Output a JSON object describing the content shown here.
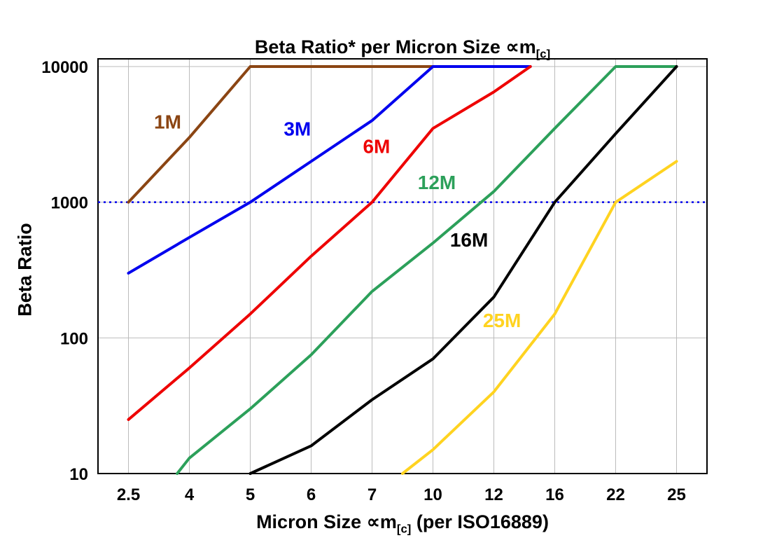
{
  "labels": {
    "title_main": "Beta Ratio* per Micron Size ",
    "title_symbol": "∝m",
    "title_sub": "[c]",
    "y_axis": "Beta Ratio",
    "x_axis_main": "Micron Size ",
    "x_axis_symbol": "∝m",
    "x_axis_sub": "[c]",
    "x_axis_rest": " (per ISO16889)"
  },
  "chart_data": {
    "type": "line",
    "title": "Beta Ratio* per Micron Size ∝m[c]",
    "xlabel": "Micron Size ∝m[c] (per ISO16889)",
    "ylabel": "Beta Ratio",
    "y_scale": "log",
    "ylim": [
      10,
      10000
    ],
    "y_ticks": [
      10,
      100,
      1000,
      10000
    ],
    "x_categories": [
      "2.5",
      "4",
      "5",
      "6",
      "7",
      "10",
      "12",
      "16",
      "22",
      "25"
    ],
    "grid": true,
    "legend_position": "inline-labels",
    "reference_line": {
      "value": 1000,
      "color": "#0000ee",
      "style": "dotted"
    },
    "series": [
      {
        "name": "1M",
        "color": "#8b4513",
        "points": [
          [
            0,
            1000
          ],
          [
            1,
            3000
          ],
          [
            2,
            10000
          ],
          [
            5,
            10000
          ]
        ],
        "label_at": [
          0.42,
          3500
        ]
      },
      {
        "name": "3M",
        "color": "#0000ee",
        "points": [
          [
            0,
            300
          ],
          [
            1,
            550
          ],
          [
            2,
            1000
          ],
          [
            3,
            2000
          ],
          [
            4,
            4000
          ],
          [
            5,
            10000
          ],
          [
            6.6,
            10000
          ]
        ],
        "label_at": [
          2.55,
          3100
        ]
      },
      {
        "name": "6M",
        "color": "#ee0000",
        "points": [
          [
            0,
            25
          ],
          [
            1,
            60
          ],
          [
            2,
            150
          ],
          [
            3,
            400
          ],
          [
            4,
            1000
          ],
          [
            5,
            3500
          ],
          [
            6,
            6500
          ],
          [
            6.6,
            10000
          ]
        ],
        "label_at": [
          3.85,
          2300
        ]
      },
      {
        "name": "12M",
        "color": "#2ca05a",
        "points": [
          [
            0.8,
            10
          ],
          [
            1,
            13
          ],
          [
            2,
            30
          ],
          [
            3,
            75
          ],
          [
            4,
            220
          ],
          [
            5,
            500
          ],
          [
            6,
            1200
          ],
          [
            7,
            3500
          ],
          [
            8,
            10000
          ],
          [
            9,
            10000
          ]
        ],
        "label_at": [
          4.75,
          1250
        ]
      },
      {
        "name": "16M",
        "color": "#000000",
        "points": [
          [
            2,
            10
          ],
          [
            3,
            16
          ],
          [
            4,
            35
          ],
          [
            5,
            70
          ],
          [
            6,
            200
          ],
          [
            7,
            1000
          ],
          [
            8,
            3200
          ],
          [
            9,
            10000
          ]
        ],
        "label_at": [
          5.28,
          470
        ]
      },
      {
        "name": "25M",
        "color": "#ffd320",
        "points": [
          [
            4.5,
            10
          ],
          [
            5,
            15
          ],
          [
            6,
            40
          ],
          [
            7,
            150
          ],
          [
            8,
            1000
          ],
          [
            9,
            2000
          ]
        ],
        "label_at": [
          5.82,
          120
        ]
      }
    ]
  }
}
